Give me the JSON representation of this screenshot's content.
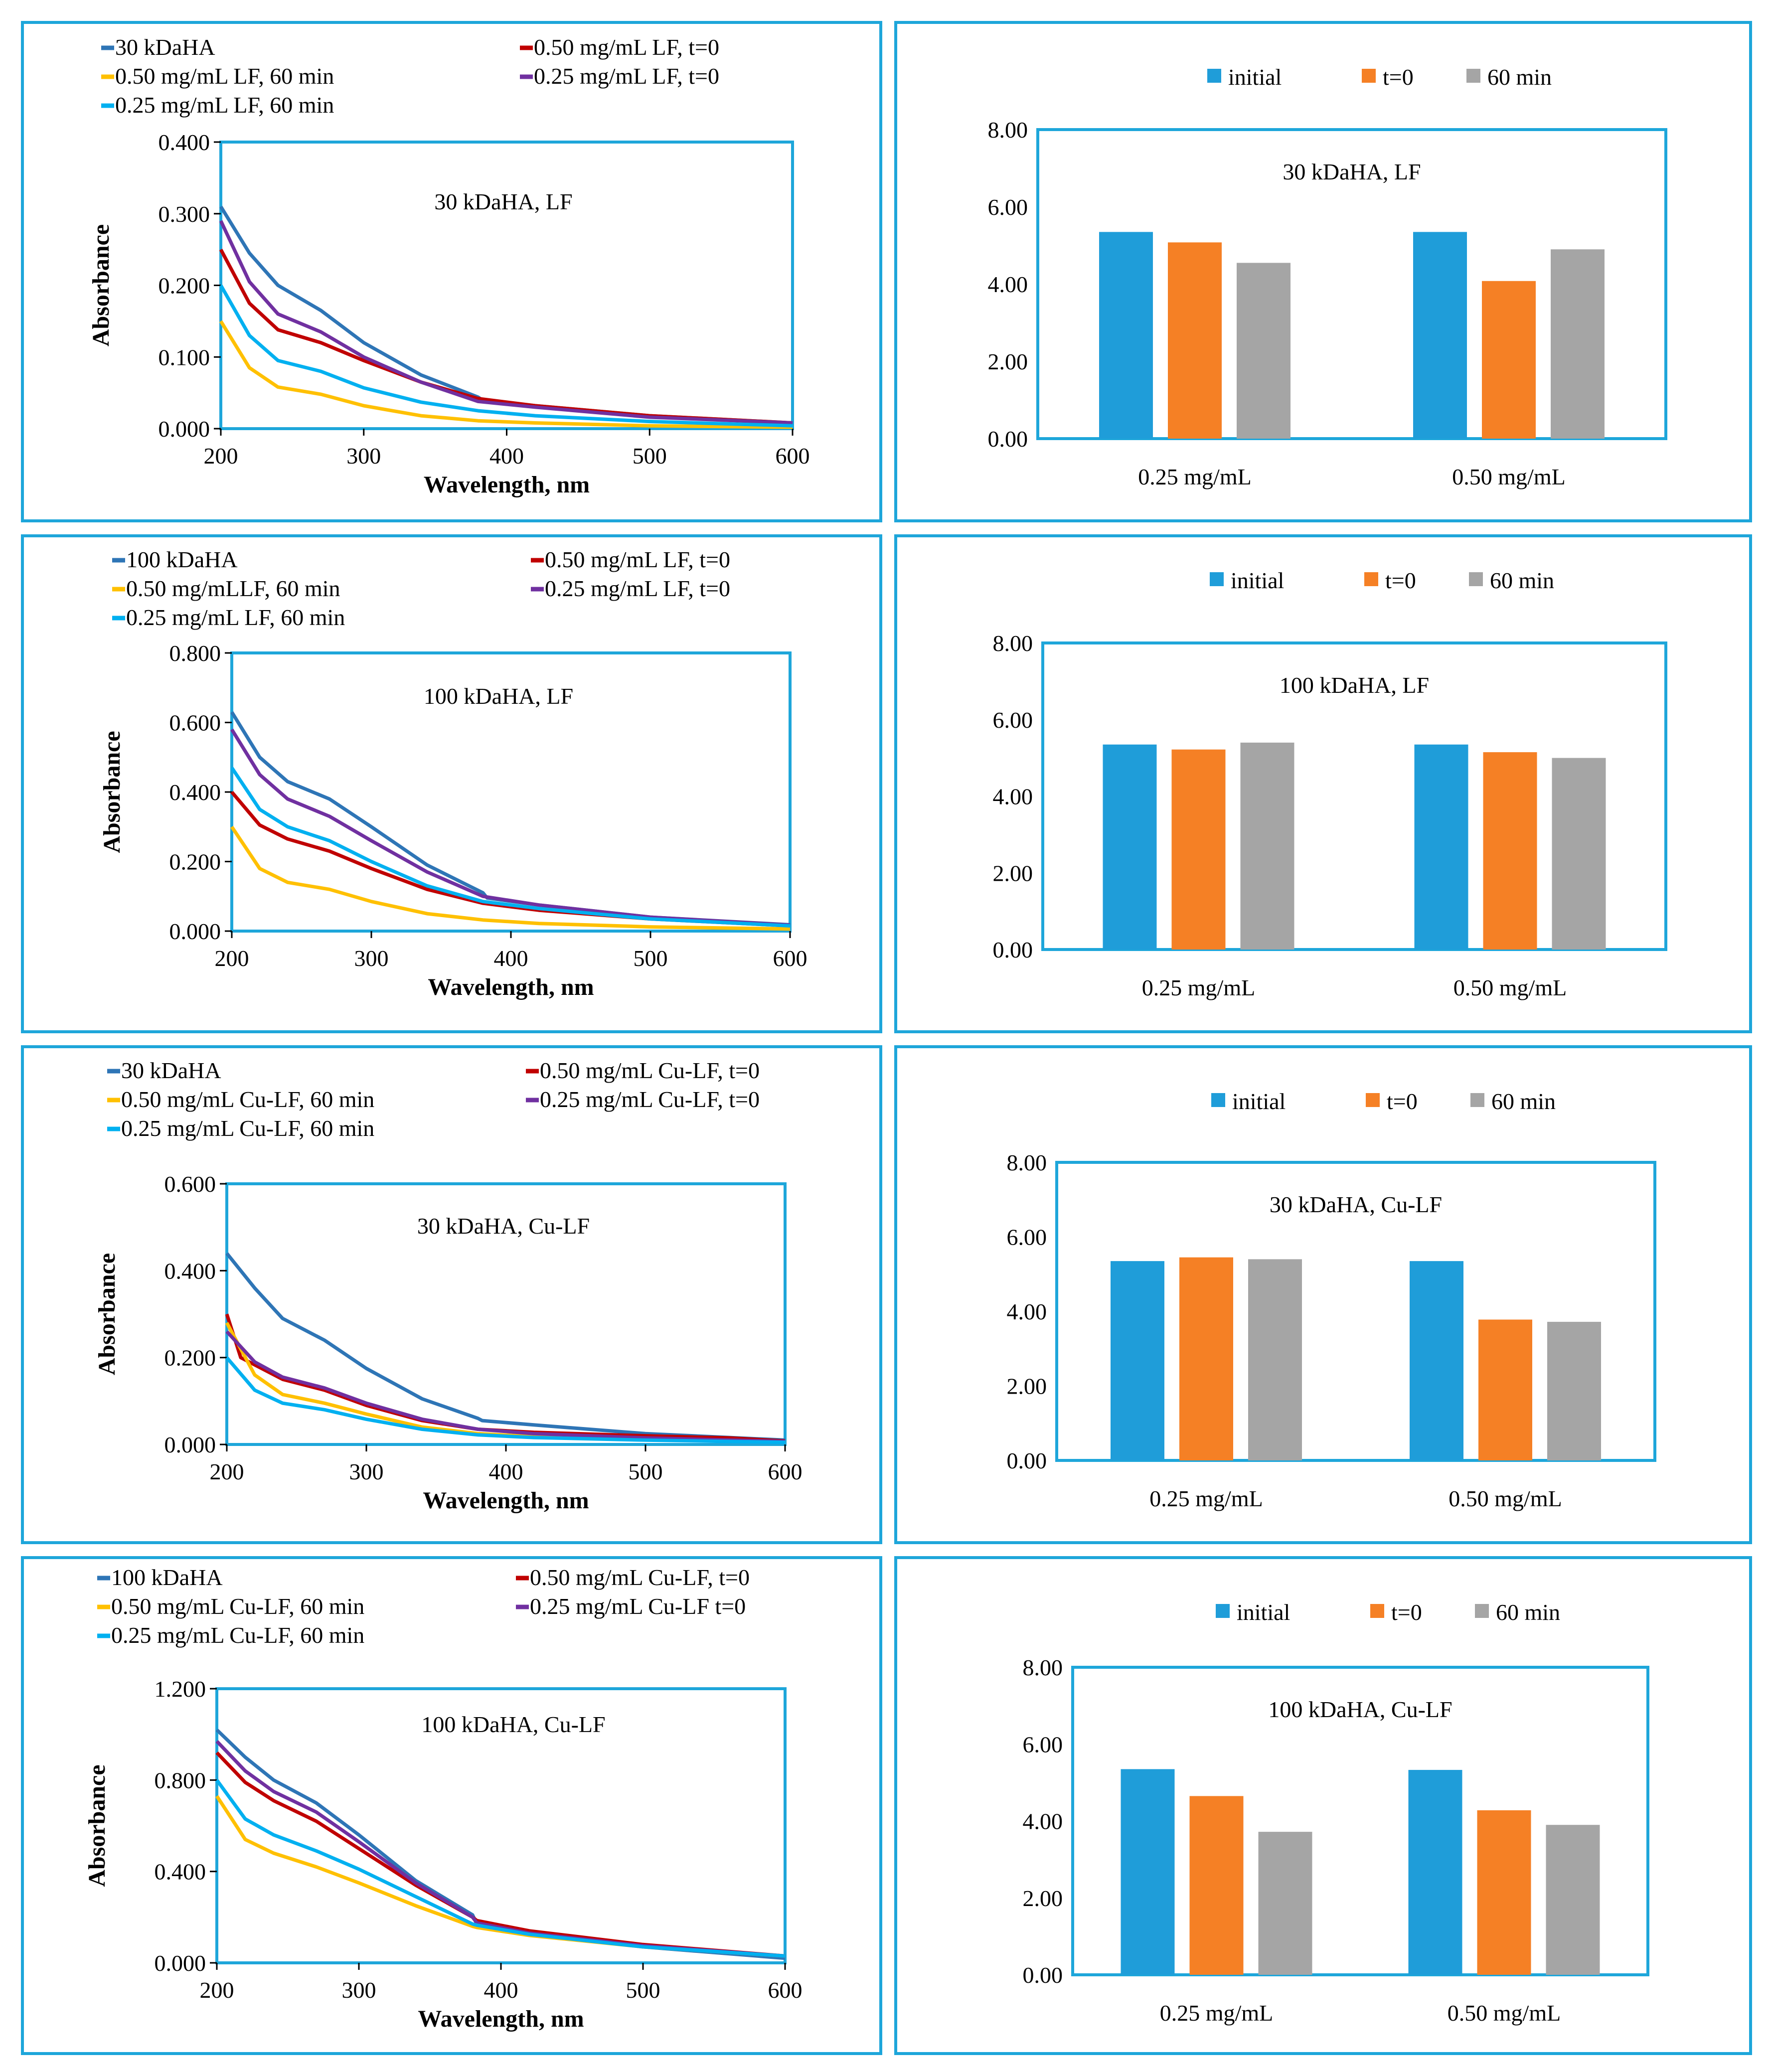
{
  "colors": {
    "panel_border": "#1EA6DA",
    "plot_border": "#1EA6DA",
    "bar_initial": "#1F9DD9",
    "bar_t0": "#F58025",
    "bar_60": "#A5A5A5"
  },
  "chart_data": [
    {
      "type": "line",
      "title": "30 kDaHA, LF",
      "xlabel": "Wavelength, nm",
      "ylabel": "Absorbance",
      "xlim": [
        200,
        600
      ],
      "ylim": [
        0,
        0.4
      ],
      "x_ticks": [
        "200",
        "300",
        "400",
        "500",
        "600"
      ],
      "y_ticks": [
        "0.000",
        "0.100",
        "0.200",
        "0.300",
        "0.400"
      ],
      "legend": [
        "30 kDaHA",
        "0.50 mg/mL LF, t=0",
        "0.50 mg/mL LF, 60 min",
        "0.25 mg/mL LF, t=0",
        "0.25 mg/mL LF, 60 min"
      ],
      "series": [
        {
          "name": "30 kDaHA",
          "color": "#2E75B6",
          "x": [
            200,
            220,
            240,
            270,
            300,
            340,
            380,
            383,
            420,
            500,
            600
          ],
          "values": [
            0.31,
            0.245,
            0.2,
            0.165,
            0.12,
            0.075,
            0.044,
            0.04,
            0.032,
            0.018,
            0.008
          ]
        },
        {
          "name": "0.50 mg/mL LF, t=0",
          "color": "#C00000",
          "x": [
            200,
            220,
            240,
            270,
            300,
            340,
            380,
            420,
            500,
            600
          ],
          "values": [
            0.25,
            0.175,
            0.138,
            0.12,
            0.095,
            0.065,
            0.042,
            0.032,
            0.018,
            0.008
          ]
        },
        {
          "name": "0.50 mg/mL LF, 60 min",
          "color": "#FFC000",
          "x": [
            200,
            220,
            240,
            270,
            300,
            340,
            380,
            420,
            500,
            600
          ],
          "values": [
            0.15,
            0.085,
            0.058,
            0.048,
            0.032,
            0.018,
            0.011,
            0.008,
            0.004,
            0.002
          ]
        },
        {
          "name": "0.25 mg/mL LF, t=0",
          "color": "#7030A0",
          "x": [
            200,
            220,
            240,
            270,
            300,
            340,
            380,
            420,
            500,
            600
          ],
          "values": [
            0.29,
            0.205,
            0.16,
            0.135,
            0.1,
            0.065,
            0.038,
            0.03,
            0.016,
            0.008
          ]
        },
        {
          "name": "0.25 mg/mL LF, 60 min",
          "color": "#00B0F0",
          "x": [
            200,
            220,
            240,
            270,
            300,
            340,
            380,
            420,
            500,
            600
          ],
          "values": [
            0.2,
            0.13,
            0.095,
            0.08,
            0.057,
            0.037,
            0.025,
            0.018,
            0.01,
            0.004
          ]
        }
      ]
    },
    {
      "type": "bar",
      "title": "30 kDaHA, LF",
      "categories": [
        "0.25 mg/mL",
        "0.50 mg/mL"
      ],
      "ylim": [
        0,
        8
      ],
      "y_ticks": [
        "0.00",
        "2.00",
        "4.00",
        "6.00",
        "8.00"
      ],
      "series": [
        {
          "name": "initial",
          "values": [
            5.35,
            5.35
          ]
        },
        {
          "name": "t=0",
          "values": [
            5.08,
            4.08
          ]
        },
        {
          "name": "60 min",
          "values": [
            4.55,
            4.9
          ]
        }
      ]
    },
    {
      "type": "line",
      "title": "100 kDaHA, LF",
      "xlabel": "Wavelength, nm",
      "ylabel": "Absorbance",
      "xlim": [
        200,
        600
      ],
      "ylim": [
        0,
        0.8
      ],
      "x_ticks": [
        "200",
        "300",
        "400",
        "500",
        "600"
      ],
      "y_ticks": [
        "0.000",
        "0.200",
        "0.400",
        "0.600",
        "0.800"
      ],
      "legend": [
        "100 kDaHA",
        "0.50 mg/mL LF, t=0",
        "0.50 mg/mLLF, 60 min",
        "0.25 mg/mL LF, t=0",
        "0.25 mg/mL LF, 60 min"
      ],
      "series": [
        {
          "name": "100 kDaHA",
          "color": "#2E75B6",
          "x": [
            200,
            220,
            240,
            270,
            300,
            340,
            380,
            383,
            420,
            500,
            600
          ],
          "values": [
            0.63,
            0.5,
            0.43,
            0.38,
            0.3,
            0.19,
            0.11,
            0.095,
            0.075,
            0.04,
            0.018
          ]
        },
        {
          "name": "0.50 mg/mL LF, t=0",
          "color": "#C00000",
          "x": [
            200,
            220,
            240,
            270,
            300,
            340,
            380,
            420,
            500,
            600
          ],
          "values": [
            0.4,
            0.305,
            0.265,
            0.23,
            0.18,
            0.12,
            0.08,
            0.06,
            0.035,
            0.015
          ]
        },
        {
          "name": "0.50 mg/mLLF, 60 min",
          "color": "#FFC000",
          "x": [
            200,
            220,
            240,
            270,
            300,
            340,
            380,
            420,
            500,
            600
          ],
          "values": [
            0.3,
            0.18,
            0.14,
            0.12,
            0.085,
            0.05,
            0.032,
            0.022,
            0.012,
            0.006
          ]
        },
        {
          "name": "0.25 mg/mL LF, t=0",
          "color": "#7030A0",
          "x": [
            200,
            220,
            240,
            270,
            300,
            340,
            380,
            420,
            500,
            600
          ],
          "values": [
            0.58,
            0.45,
            0.38,
            0.33,
            0.26,
            0.17,
            0.1,
            0.075,
            0.04,
            0.017
          ]
        },
        {
          "name": "0.25 mg/mL LF, 60 min",
          "color": "#00B0F0",
          "x": [
            200,
            220,
            240,
            270,
            300,
            340,
            380,
            420,
            500,
            600
          ],
          "values": [
            0.47,
            0.35,
            0.3,
            0.26,
            0.2,
            0.13,
            0.085,
            0.065,
            0.035,
            0.015
          ]
        }
      ]
    },
    {
      "type": "bar",
      "title": "100 kDaHA, LF",
      "categories": [
        "0.25 mg/mL",
        "0.50 mg/mL"
      ],
      "ylim": [
        0,
        8
      ],
      "y_ticks": [
        "0.00",
        "2.00",
        "4.00",
        "6.00",
        "8.00"
      ],
      "series": [
        {
          "name": "initial",
          "values": [
            5.35,
            5.35
          ]
        },
        {
          "name": "t=0",
          "values": [
            5.22,
            5.15
          ]
        },
        {
          "name": "60 min",
          "values": [
            5.4,
            5.0
          ]
        }
      ]
    },
    {
      "type": "line",
      "title": "30 kDaHA, Cu-LF",
      "xlabel": "Wavelength, nm",
      "ylabel": "Absorbance",
      "xlim": [
        200,
        600
      ],
      "ylim": [
        0,
        0.6
      ],
      "x_ticks": [
        "200",
        "300",
        "400",
        "500",
        "600"
      ],
      "y_ticks": [
        "0.000",
        "0.200",
        "0.400",
        "0.600"
      ],
      "legend": [
        "30 kDaHA",
        "0.50 mg/mL Cu-LF, t=0",
        "0.50 mg/mL Cu-LF, 60 min",
        "0.25 mg/mL Cu-LF, t=0",
        "0.25 mg/mL Cu-LF, 60 min"
      ],
      "series": [
        {
          "name": "30 kDaHA",
          "color": "#2E75B6",
          "x": [
            200,
            220,
            240,
            270,
            300,
            340,
            380,
            383,
            420,
            500,
            600
          ],
          "values": [
            0.44,
            0.36,
            0.29,
            0.24,
            0.175,
            0.105,
            0.06,
            0.055,
            0.045,
            0.025,
            0.01
          ]
        },
        {
          "name": "0.50 mg/mL Cu-LF, t=0",
          "color": "#C00000",
          "x": [
            200,
            210,
            240,
            270,
            300,
            340,
            380,
            420,
            500,
            560,
            600
          ],
          "values": [
            0.3,
            0.2,
            0.15,
            0.125,
            0.09,
            0.055,
            0.035,
            0.028,
            0.02,
            0.015,
            0.008
          ]
        },
        {
          "name": "0.50 mg/mL Cu-LF, 60 min",
          "color": "#FFC000",
          "x": [
            200,
            220,
            240,
            270,
            300,
            340,
            380,
            420,
            500,
            600
          ],
          "values": [
            0.28,
            0.16,
            0.115,
            0.095,
            0.07,
            0.04,
            0.025,
            0.018,
            0.012,
            0.006
          ]
        },
        {
          "name": "0.25 mg/mL Cu-LF, t=0",
          "color": "#7030A0",
          "x": [
            200,
            220,
            240,
            270,
            300,
            340,
            380,
            420,
            500,
            600
          ],
          "values": [
            0.26,
            0.19,
            0.155,
            0.13,
            0.095,
            0.058,
            0.035,
            0.025,
            0.015,
            0.007
          ]
        },
        {
          "name": "0.25 mg/mL Cu-LF, 60 min",
          "color": "#00B0F0",
          "x": [
            200,
            220,
            240,
            270,
            300,
            340,
            380,
            420,
            500,
            600
          ],
          "values": [
            0.2,
            0.125,
            0.095,
            0.08,
            0.058,
            0.035,
            0.022,
            0.016,
            0.01,
            0.005
          ]
        }
      ]
    },
    {
      "type": "bar",
      "title": "30 kDaHA, Cu-LF",
      "categories": [
        "0.25 mg/mL",
        "0.50 mg/mL"
      ],
      "ylim": [
        0,
        8
      ],
      "y_ticks": [
        "0.00",
        "2.00",
        "4.00",
        "6.00",
        "8.00"
      ],
      "series": [
        {
          "name": "initial",
          "values": [
            5.35,
            5.35
          ]
        },
        {
          "name": "t=0",
          "values": [
            5.45,
            3.78
          ]
        },
        {
          "name": "60 min",
          "values": [
            5.4,
            3.72
          ]
        }
      ]
    },
    {
      "type": "line",
      "title": "100 kDaHA, Cu-LF",
      "xlabel": "Wavelength, nm",
      "ylabel": "Absorbance",
      "xlim": [
        200,
        600
      ],
      "ylim": [
        0,
        1.2
      ],
      "x_ticks": [
        "200",
        "300",
        "400",
        "500",
        "600"
      ],
      "y_ticks": [
        "0.000",
        "0.400",
        "0.800",
        "1.200"
      ],
      "legend": [
        "100 kDaHA",
        "0.50 mg/mL Cu-LF, t=0",
        "0.50 mg/mL Cu-LF, 60 min",
        "0.25 mg/mL Cu-LF t=0",
        "0.25 mg/mL Cu-LF, 60 min"
      ],
      "series": [
        {
          "name": "100 kDaHA",
          "color": "#2E75B6",
          "x": [
            200,
            220,
            240,
            270,
            300,
            340,
            380,
            383,
            420,
            500,
            600
          ],
          "values": [
            1.02,
            0.9,
            0.8,
            0.7,
            0.56,
            0.36,
            0.21,
            0.17,
            0.13,
            0.07,
            0.02
          ]
        },
        {
          "name": "0.50 mg/mL Cu-LF, t=0",
          "color": "#C00000",
          "x": [
            200,
            220,
            240,
            270,
            300,
            340,
            380,
            383,
            420,
            500,
            600
          ],
          "values": [
            0.92,
            0.79,
            0.71,
            0.62,
            0.5,
            0.34,
            0.2,
            0.185,
            0.14,
            0.08,
            0.03
          ]
        },
        {
          "name": "0.50 mg/mL Cu-LF, 60 min",
          "color": "#FFC000",
          "x": [
            200,
            220,
            240,
            270,
            300,
            340,
            380,
            383,
            420,
            500,
            600
          ],
          "values": [
            0.73,
            0.54,
            0.48,
            0.42,
            0.35,
            0.25,
            0.16,
            0.155,
            0.12,
            0.07,
            0.03
          ]
        },
        {
          "name": "0.25 mg/mL Cu-LF t=0",
          "color": "#7030A0",
          "x": [
            200,
            220,
            240,
            270,
            300,
            340,
            380,
            383,
            420,
            500,
            600
          ],
          "values": [
            0.97,
            0.84,
            0.75,
            0.66,
            0.53,
            0.35,
            0.2,
            0.175,
            0.13,
            0.075,
            0.03
          ]
        },
        {
          "name": "0.25 mg/mL Cu-LF, 60 min",
          "color": "#00B0F0",
          "x": [
            200,
            220,
            240,
            270,
            300,
            340,
            380,
            383,
            420,
            500,
            600
          ],
          "values": [
            0.8,
            0.63,
            0.56,
            0.49,
            0.41,
            0.29,
            0.17,
            0.165,
            0.125,
            0.07,
            0.03
          ]
        }
      ]
    },
    {
      "type": "bar",
      "title": "100 kDaHA, Cu-LF",
      "categories": [
        "0.25 mg/mL",
        "0.50 mg/mL"
      ],
      "ylim": [
        0,
        8
      ],
      "y_ticks": [
        "0.00",
        "2.00",
        "4.00",
        "6.00",
        "8.00"
      ],
      "series": [
        {
          "name": "initial",
          "values": [
            5.35,
            5.33
          ]
        },
        {
          "name": "t=0",
          "values": [
            4.65,
            4.28
          ]
        },
        {
          "name": "60 min",
          "values": [
            3.72,
            3.9
          ]
        }
      ]
    }
  ]
}
